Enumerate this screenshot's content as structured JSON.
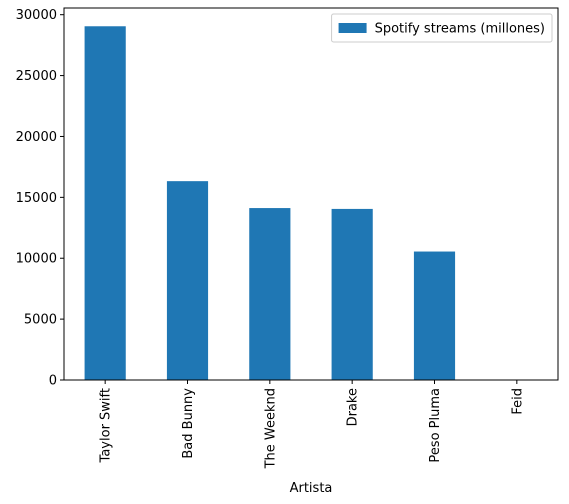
{
  "chart_data": {
    "type": "bar",
    "categories": [
      "Taylor Swift",
      "Bad Bunny",
      "The Weeknd",
      "Drake",
      "Peso Pluma",
      "Feid"
    ],
    "series": [
      {
        "name": "Spotify streams (millones)",
        "values": [
          29050,
          16330,
          14120,
          14050,
          10550,
          0
        ],
        "color": "#1f77b4"
      }
    ],
    "xlabel": "Artista",
    "ylabel": "",
    "ylim": [
      0,
      30550
    ],
    "yticks": [
      0,
      5000,
      10000,
      15000,
      20000,
      25000,
      30000
    ],
    "ytick_labels": [
      "0",
      "5000",
      "10000",
      "15000",
      "20000",
      "25000",
      "30000"
    ],
    "grid": false,
    "legend_position": "top-right"
  }
}
